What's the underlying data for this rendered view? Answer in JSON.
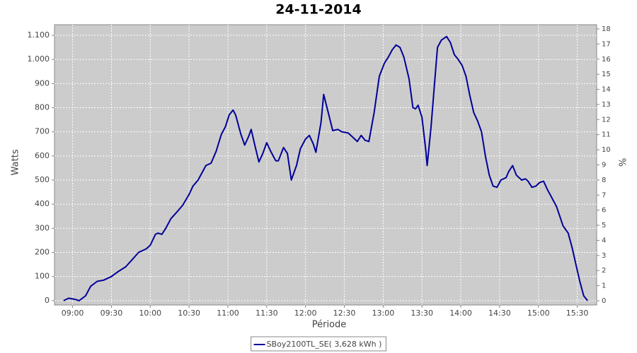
{
  "chart_data": {
    "type": "line",
    "title": "24-11-2014",
    "x_label": "Période",
    "y_label": "Watts",
    "y2_label": "%",
    "x": [
      "08:53",
      "08:57",
      "09:02",
      "09:05",
      "09:10",
      "09:14",
      "09:19",
      "09:24",
      "09:30",
      "09:35",
      "09:41",
      "09:46",
      "09:51",
      "09:57",
      "10:00",
      "10:04",
      "10:06",
      "10:09",
      "10:12",
      "10:16",
      "10:21",
      "10:25",
      "10:30",
      "10:33",
      "10:37",
      "10:43",
      "10:47",
      "10:51",
      "10:55",
      "10:58",
      "11:01",
      "11:04",
      "11:06",
      "11:10",
      "11:13",
      "11:16",
      "11:18",
      "11:21",
      "11:24",
      "11:27",
      "11:30",
      "11:33",
      "11:37",
      "11:39",
      "11:43",
      "11:46",
      "11:49",
      "11:53",
      "11:56",
      "12:00",
      "12:03",
      "12:06",
      "12:08",
      "12:12",
      "12:14",
      "12:18",
      "12:21",
      "12:25",
      "12:28",
      "12:33",
      "12:36",
      "12:40",
      "12:43",
      "12:46",
      "12:49",
      "12:53",
      "12:57",
      "13:01",
      "13:04",
      "13:07",
      "13:10",
      "13:13",
      "13:16",
      "13:20",
      "13:23",
      "13:25",
      "13:27",
      "13:30",
      "13:33",
      "13:34",
      "13:37",
      "13:40",
      "13:42",
      "13:45",
      "13:49",
      "13:52",
      "13:55",
      "13:58",
      "14:01",
      "14:04",
      "14:07",
      "14:10",
      "14:13",
      "14:16",
      "14:19",
      "14:22",
      "14:25",
      "14:28",
      "14:31",
      "14:35",
      "14:37",
      "14:40",
      "14:43",
      "14:47",
      "14:50",
      "14:52",
      "14:55",
      "14:58",
      "15:01",
      "15:04",
      "15:07",
      "15:10",
      "15:14",
      "15:19",
      "15:23",
      "15:26",
      "15:29",
      "15:32",
      "15:35",
      "15:38"
    ],
    "series": [
      {
        "name": "SBoy2100TL_SE( 3,628 kWh )",
        "color": "#000099",
        "axis": "y",
        "values": [
          0,
          10,
          5,
          0,
          20,
          60,
          80,
          85,
          100,
          120,
          140,
          170,
          200,
          215,
          230,
          275,
          280,
          275,
          300,
          340,
          370,
          395,
          440,
          475,
          500,
          560,
          570,
          620,
          690,
          720,
          770,
          790,
          770,
          690,
          645,
          680,
          710,
          640,
          575,
          610,
          655,
          620,
          580,
          580,
          635,
          610,
          500,
          560,
          630,
          670,
          685,
          650,
          615,
          740,
          855,
          770,
          705,
          710,
          700,
          695,
          680,
          660,
          685,
          665,
          660,
          780,
          930,
          985,
          1010,
          1040,
          1060,
          1050,
          1010,
          920,
          800,
          795,
          810,
          760,
          620,
          560,
          720,
          920,
          1050,
          1080,
          1095,
          1070,
          1020,
          1000,
          975,
          930,
          850,
          780,
          745,
          700,
          600,
          520,
          475,
          470,
          500,
          510,
          535,
          560,
          520,
          500,
          505,
          495,
          470,
          475,
          490,
          495,
          460,
          430,
          390,
          310,
          280,
          220,
          150,
          80,
          20,
          0
        ]
      }
    ],
    "xlim": [
      "08:46",
      "15:45"
    ],
    "xticks": [
      "09:00",
      "09:30",
      "10:00",
      "10:30",
      "11:00",
      "11:30",
      "12:00",
      "12:30",
      "13:00",
      "13:30",
      "14:00",
      "14:30",
      "15:00",
      "15:30"
    ],
    "ylim": [
      -18,
      1144
    ],
    "yticks": [
      0,
      100,
      200,
      300,
      400,
      500,
      600,
      700,
      800,
      900,
      {
        "value": 1000,
        "label": "1.000"
      },
      {
        "value": 1100,
        "label": "1.100"
      }
    ],
    "y2lim": [
      -0.28,
      18.28
    ],
    "y2ticks": [
      0,
      1,
      2,
      3,
      4,
      5,
      6,
      7,
      8,
      9,
      10,
      11,
      12,
      13,
      14,
      15,
      16,
      17,
      18
    ],
    "grid": true,
    "legend": "bottom",
    "background": "#cccccc"
  }
}
